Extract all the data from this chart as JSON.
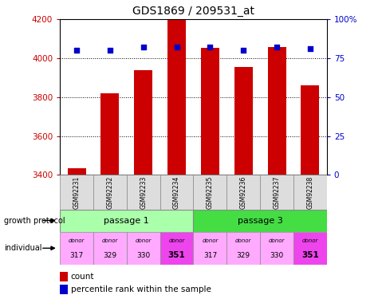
{
  "title": "GDS1869 / 209531_at",
  "samples": [
    "GSM92231",
    "GSM92232",
    "GSM92233",
    "GSM92234",
    "GSM92235",
    "GSM92236",
    "GSM92237",
    "GSM92238"
  ],
  "bar_values": [
    3435,
    3820,
    3940,
    4200,
    4055,
    3955,
    4060,
    3860
  ],
  "percentile_values": [
    80,
    80,
    82,
    82,
    82,
    80,
    82,
    81
  ],
  "ylim_left": [
    3400,
    4200
  ],
  "ylim_right": [
    0,
    100
  ],
  "yticks_left": [
    3400,
    3600,
    3800,
    4000,
    4200
  ],
  "yticks_right": [
    0,
    25,
    50,
    75,
    100
  ],
  "ytick_labels_right": [
    "0",
    "25",
    "50",
    "75",
    "100%"
  ],
  "bar_color": "#cc0000",
  "dot_color": "#0000cc",
  "bar_width": 0.55,
  "passage1_color": "#aaffaa",
  "passage3_color": "#44dd44",
  "donor_light_color": "#ffaaff",
  "donor_dark_color": "#ee44ee",
  "sample_box_color": "#dddddd",
  "passage_labels": [
    "passage 1",
    "passage 3"
  ],
  "protocol_label": "growth protocol",
  "individual_label": "individual",
  "legend_count": "count",
  "legend_percentile": "percentile rank within the sample",
  "tick_label_color_left": "#cc0000",
  "tick_label_color_right": "#0000cc",
  "donor_numbers": [
    "317",
    "329",
    "330",
    "351",
    "317",
    "329",
    "330",
    "351"
  ]
}
